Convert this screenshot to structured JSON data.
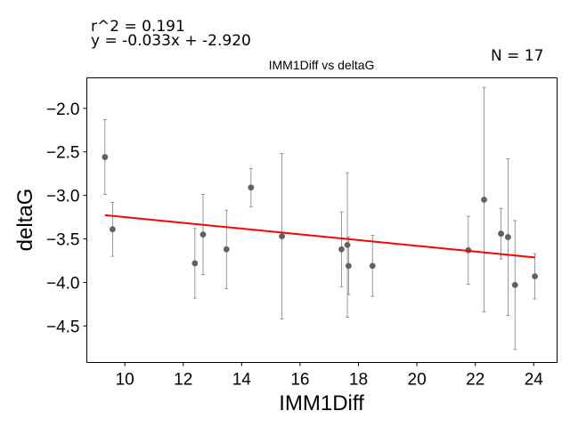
{
  "annotations": {
    "r2": "r^2 = 0.191",
    "equation": "y = -0.033x + -2.920",
    "n": "N = 17"
  },
  "chart_data": {
    "type": "scatter",
    "title": "IMM1Diff vs deltaG",
    "xlabel": "IMM1Diff",
    "ylabel": "deltaG",
    "xlim": [
      8.7,
      24.8
    ],
    "ylim": [
      -4.92,
      -1.65
    ],
    "xticks": [
      10,
      12,
      14,
      16,
      18,
      20,
      22,
      24
    ],
    "yticks": [
      -4.5,
      -4.0,
      -3.5,
      -3.0,
      -2.5,
      -2.0
    ],
    "ytick_labels": [
      "−4.5",
      "−4.0",
      "−3.5",
      "−3.0",
      "−2.5",
      "−2.0"
    ],
    "grid": false,
    "points": [
      {
        "x": 9.32,
        "y": -2.56,
        "err": 0.43
      },
      {
        "x": 9.58,
        "y": -3.39,
        "err": 0.31
      },
      {
        "x": 12.4,
        "y": -3.78,
        "err": 0.4
      },
      {
        "x": 12.68,
        "y": -3.45,
        "err": 0.46
      },
      {
        "x": 13.48,
        "y": -3.62,
        "err": 0.45
      },
      {
        "x": 14.32,
        "y": -2.91,
        "err": 0.22
      },
      {
        "x": 15.38,
        "y": -3.47,
        "err": 0.95
      },
      {
        "x": 17.42,
        "y": -3.62,
        "err": 0.43
      },
      {
        "x": 17.62,
        "y": -3.57,
        "err": 0.83
      },
      {
        "x": 17.66,
        "y": -3.81,
        "err": 0.33
      },
      {
        "x": 18.48,
        "y": -3.81,
        "err": 0.35
      },
      {
        "x": 21.76,
        "y": -3.63,
        "err": 0.39
      },
      {
        "x": 22.3,
        "y": -3.05,
        "err": 1.29
      },
      {
        "x": 22.88,
        "y": -3.44,
        "err": 0.29
      },
      {
        "x": 23.12,
        "y": -3.48,
        "err": 0.9
      },
      {
        "x": 23.36,
        "y": -4.03,
        "err": 0.74
      },
      {
        "x": 24.04,
        "y": -3.93,
        "err": 0.26
      }
    ],
    "fit_line": {
      "slope": -0.033,
      "intercept": -2.92,
      "x_range": [
        9.32,
        24.04
      ]
    },
    "colors": {
      "points": "#616161",
      "errorbars": "#808080",
      "fit": "#ff0000",
      "axes": "#000000"
    }
  }
}
